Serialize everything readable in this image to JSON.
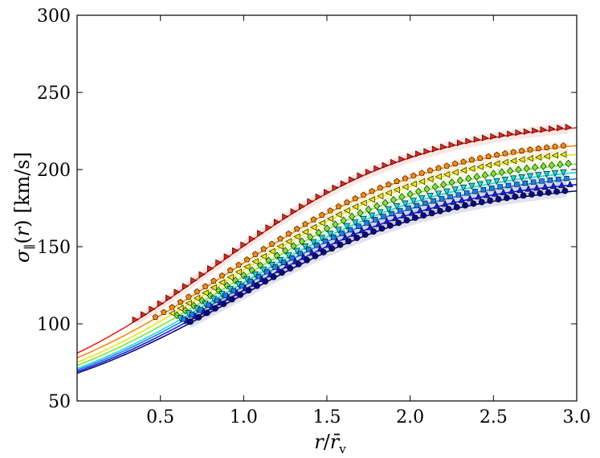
{
  "chart_data": {
    "type": "line",
    "xlabel": "r/r̄_v",
    "ylabel": "σ_∥(r) [km/s]",
    "xlim": [
      0.0,
      3.0
    ],
    "ylim": [
      50,
      300
    ],
    "x_ticks": [
      0.5,
      1.0,
      1.5,
      2.0,
      2.5,
      3.0
    ],
    "x_tick_labels": [
      "0.5",
      "1.0",
      "1.5",
      "2.0",
      "2.5",
      "3.0"
    ],
    "y_ticks": [
      50,
      100,
      150,
      200,
      250,
      300
    ],
    "y_tick_labels": [
      "50",
      "100",
      "150",
      "200",
      "250",
      "300"
    ],
    "grid": false,
    "series": [
      {
        "color": "#e8281a",
        "marker": "triangle-right",
        "model": {
          "base": 81,
          "amp": 192,
          "x0": 0.82,
          "w": 0.62
        },
        "points_x_start": 0.35
      },
      {
        "color": "#f58a12",
        "marker": "pentagon",
        "model": {
          "base": 78,
          "amp": 181,
          "x0": 0.89,
          "w": 0.65
        },
        "points_x_start": 0.47
      },
      {
        "color": "#e7e61c",
        "marker": "triangle-left",
        "model": {
          "base": 75,
          "amp": 177,
          "x0": 0.9,
          "w": 0.65
        },
        "points_x_start": 0.57
      },
      {
        "color": "#7fe33a",
        "marker": "diamond",
        "model": {
          "base": 73,
          "amp": 171,
          "x0": 0.91,
          "w": 0.65
        },
        "points_x_start": 0.6
      },
      {
        "color": "#18d7d7",
        "marker": "triangle-down",
        "model": {
          "base": 71,
          "amp": 166,
          "x0": 0.92,
          "w": 0.65
        },
        "points_x_start": 0.62
      },
      {
        "color": "#1a7fe8",
        "marker": "square",
        "model": {
          "base": 70,
          "amp": 162,
          "x0": 0.92,
          "w": 0.65
        },
        "points_x_start": 0.64
      },
      {
        "color": "#1a1ae0",
        "marker": "triangle-up",
        "model": {
          "base": 69,
          "amp": 158,
          "x0": 0.93,
          "w": 0.65
        },
        "points_x_start": 0.66
      },
      {
        "color": "#0a0a7e",
        "marker": "circle",
        "model": {
          "base": 68,
          "amp": 155,
          "x0": 0.93,
          "w": 0.66
        },
        "points_x_start": 0.68
      }
    ]
  }
}
